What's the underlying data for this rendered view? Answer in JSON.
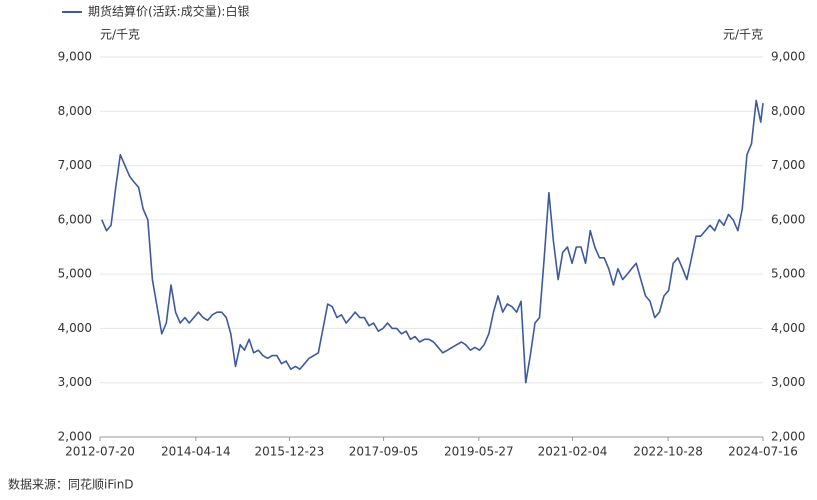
{
  "chart_data": {
    "type": "line",
    "series": [
      {
        "name": "期货结算价(活跃:成交量):白银",
        "color": "#3d5a9e",
        "values": [
          6000,
          5800,
          5900,
          6600,
          7200,
          7000,
          6800,
          6700,
          6600,
          6200,
          6000,
          4900,
          4400,
          3900,
          4100,
          4800,
          4300,
          4100,
          4200,
          4100,
          4200,
          4300,
          4200,
          4150,
          4250,
          4300,
          4300,
          4200,
          3900,
          3300,
          3700,
          3600,
          3800,
          3550,
          3600,
          3500,
          3450,
          3500,
          3500,
          3350,
          3400,
          3250,
          3300,
          3250,
          3350,
          3450,
          3500,
          3550,
          4000,
          4450,
          4400,
          4200,
          4250,
          4100,
          4200,
          4300,
          4200,
          4200,
          4050,
          4100,
          3950,
          4000,
          4100,
          4000,
          4000,
          3900,
          3950,
          3800,
          3850,
          3750,
          3800,
          3800,
          3750,
          3650,
          3550,
          3600,
          3650,
          3700,
          3750,
          3700,
          3600,
          3650,
          3600,
          3700,
          3900,
          4300,
          4600,
          4300,
          4450,
          4400,
          4300,
          4500,
          3000,
          3500,
          4100,
          4200,
          5300,
          6500,
          5600,
          4900,
          5400,
          5500,
          5200,
          5500,
          5500,
          5200,
          5800,
          5500,
          5300,
          5300,
          5100,
          4800,
          5100,
          4900,
          5000,
          5100,
          5200,
          4900,
          4600,
          4500,
          4200,
          4300,
          4600,
          4700,
          5200,
          5300,
          5100,
          4900,
          5300,
          5700,
          5700,
          5800,
          5900,
          5800,
          6000,
          5900,
          6100,
          6000,
          5800,
          6200,
          7200,
          7400,
          8200,
          7800,
          8150
        ]
      }
    ],
    "x": [
      "2012-08-01",
      "2012-09-01",
      "2012-10-01",
      "2012-11-01",
      "2012-12-01",
      "2013-01-01",
      "2013-02-01",
      "2013-03-01",
      "2013-04-01",
      "2013-05-01",
      "2013-06-01",
      "2013-07-01",
      "2013-08-01",
      "2013-09-01",
      "2013-10-01",
      "2013-11-01",
      "2013-12-01",
      "2014-01-01",
      "2014-02-01",
      "2014-03-01",
      "2014-04-01",
      "2014-05-01",
      "2014-06-01",
      "2014-07-01",
      "2014-08-01",
      "2014-09-01",
      "2014-10-01",
      "2014-11-01",
      "2014-12-01",
      "2015-01-01",
      "2015-02-01",
      "2015-03-01",
      "2015-04-01",
      "2015-05-01",
      "2015-06-01",
      "2015-07-01",
      "2015-08-01",
      "2015-09-01",
      "2015-10-01",
      "2015-11-01",
      "2015-12-01",
      "2016-01-01",
      "2016-02-01",
      "2016-03-01",
      "2016-04-01",
      "2016-05-01",
      "2016-06-01",
      "2016-07-01",
      "2016-08-01",
      "2016-09-01",
      "2016-10-01",
      "2016-11-01",
      "2016-12-01",
      "2017-01-01",
      "2017-02-01",
      "2017-03-01",
      "2017-04-01",
      "2017-05-01",
      "2017-06-01",
      "2017-07-01",
      "2017-08-01",
      "2017-09-01",
      "2017-10-01",
      "2017-11-01",
      "2017-12-01",
      "2018-01-01",
      "2018-02-01",
      "2018-03-01",
      "2018-04-01",
      "2018-05-01",
      "2018-06-01",
      "2018-07-01",
      "2018-08-01",
      "2018-09-01",
      "2018-10-01",
      "2018-11-01",
      "2018-12-01",
      "2019-01-01",
      "2019-02-01",
      "2019-03-01",
      "2019-04-01",
      "2019-05-01",
      "2019-06-01",
      "2019-07-01",
      "2019-08-01",
      "2019-09-01",
      "2019-10-01",
      "2019-11-01",
      "2019-12-01",
      "2020-01-01",
      "2020-02-01",
      "2020-03-01",
      "2020-04-01",
      "2020-05-01",
      "2020-06-01",
      "2020-07-01",
      "2020-08-01",
      "2020-09-01",
      "2020-10-01",
      "2020-11-01",
      "2020-12-01",
      "2021-01-01",
      "2021-02-01",
      "2021-03-01",
      "2021-04-01",
      "2021-05-01",
      "2021-06-01",
      "2021-07-01",
      "2021-08-01",
      "2021-09-01",
      "2021-10-01",
      "2021-11-01",
      "2021-12-01",
      "2022-01-01",
      "2022-02-01",
      "2022-03-01",
      "2022-04-01",
      "2022-05-01",
      "2022-06-01",
      "2022-07-01",
      "2022-08-01",
      "2022-09-01",
      "2022-10-01",
      "2022-11-01",
      "2022-12-01",
      "2023-01-01",
      "2023-02-01",
      "2023-03-01",
      "2023-04-01",
      "2023-05-01",
      "2023-06-01",
      "2023-07-01",
      "2023-08-01",
      "2023-09-01",
      "2023-10-01",
      "2023-11-01",
      "2023-12-01",
      "2024-01-01",
      "2024-02-01",
      "2024-03-01",
      "2024-04-01",
      "2024-05-01",
      "2024-06-01",
      "2024-07-01",
      "2024-07-16"
    ],
    "xlim": [
      "2012-07-20",
      "2024-07-16"
    ],
    "xticks": [
      "2012-07-20",
      "2014-04-14",
      "2015-12-23",
      "2017-09-05",
      "2019-05-27",
      "2021-02-04",
      "2022-10-28",
      "2024-07-16"
    ],
    "ylim": [
      2000,
      9000
    ],
    "yticks": [
      {
        "value": 2000,
        "label": "2,000"
      },
      {
        "value": 3000,
        "label": "3,000"
      },
      {
        "value": 4000,
        "label": "4,000"
      },
      {
        "value": 5000,
        "label": "5,000"
      },
      {
        "value": 6000,
        "label": "6,000"
      },
      {
        "value": 7000,
        "label": "7,000"
      },
      {
        "value": 8000,
        "label": "8,000"
      },
      {
        "value": 9000,
        "label": "9,000"
      }
    ],
    "y_unit": "元/千克",
    "grid": true,
    "source": "数据来源：同花顺iFinD"
  }
}
